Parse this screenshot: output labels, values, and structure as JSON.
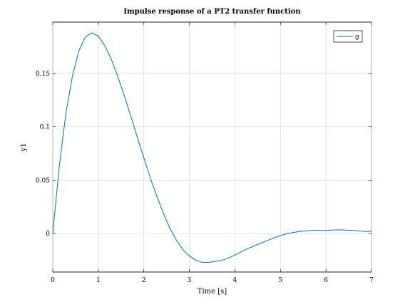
{
  "chart_data": {
    "type": "line",
    "title": "Impulse response of a PT2 transfer function",
    "xlabel": "Time [s]",
    "ylabel": "y1",
    "xlim": [
      0,
      7
    ],
    "ylim": [
      -0.036,
      0.198
    ],
    "xticks": [
      0,
      1,
      2,
      3,
      4,
      5,
      6,
      7
    ],
    "xtick_labels": [
      "0",
      "1",
      "2",
      "3",
      "4",
      "5",
      "6",
      "7"
    ],
    "yticks": [
      0,
      0.05,
      0.1,
      0.15
    ],
    "ytick_labels": [
      "0",
      "0.05",
      "0.1",
      "0.15"
    ],
    "grid": true,
    "legend_position": "top-right",
    "series": [
      {
        "name": "g",
        "color": "#0072bd",
        "x": [
          0,
          0.143,
          0.286,
          0.429,
          0.571,
          0.714,
          0.857,
          1.0,
          1.143,
          1.286,
          1.429,
          1.571,
          1.714,
          1.857,
          2.0,
          2.143,
          2.286,
          2.429,
          2.571,
          2.714,
          2.857,
          3.0,
          3.143,
          3.286,
          3.429,
          3.571,
          3.714,
          3.857,
          4.0,
          4.286,
          4.571,
          4.857,
          5.143,
          5.429,
          5.714,
          6.0,
          6.286,
          6.571,
          6.857,
          7.0
        ],
        "y": [
          0,
          0.063,
          0.112,
          0.147,
          0.171,
          0.184,
          0.188,
          0.185,
          0.176,
          0.163,
          0.147,
          0.129,
          0.11,
          0.09,
          0.071,
          0.052,
          0.035,
          0.019,
          0.005,
          -0.006,
          -0.015,
          -0.021,
          -0.025,
          -0.027,
          -0.027,
          -0.026,
          -0.025,
          -0.023,
          -0.02,
          -0.014,
          -0.009,
          -0.004,
          0.0,
          0.002,
          0.003,
          0.003,
          0.0035,
          0.003,
          0.002,
          0.002
        ]
      }
    ]
  }
}
